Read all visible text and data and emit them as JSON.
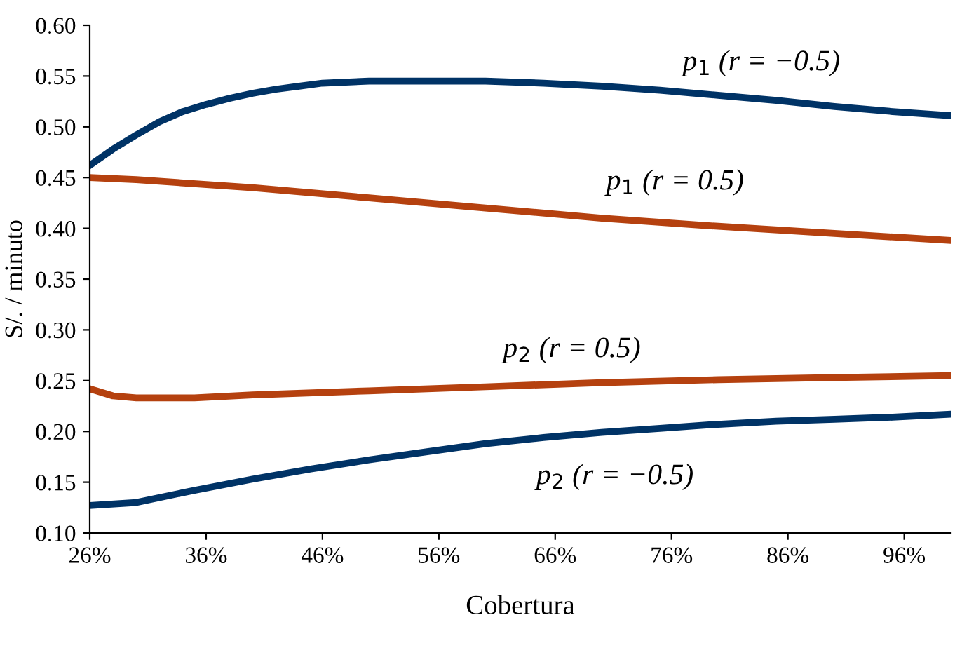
{
  "chart_data": {
    "type": "line",
    "xlabel": "Cobertura",
    "ylabel": "S/. / minuto",
    "xlim": [
      26,
      100
    ],
    "xticks": [
      {
        "value": 26,
        "label": "26%"
      },
      {
        "value": 36,
        "label": "36%"
      },
      {
        "value": 46,
        "label": "46%"
      },
      {
        "value": 56,
        "label": "56%"
      },
      {
        "value": 66,
        "label": "66%"
      },
      {
        "value": 76,
        "label": "76%"
      },
      {
        "value": 86,
        "label": "86%"
      },
      {
        "value": 96,
        "label": "96%"
      }
    ],
    "ylim": [
      0.1,
      0.6
    ],
    "yticks": [
      {
        "value": 0.1,
        "label": "0.10"
      },
      {
        "value": 0.15,
        "label": "0.15"
      },
      {
        "value": 0.2,
        "label": "0.20"
      },
      {
        "value": 0.25,
        "label": "0.25"
      },
      {
        "value": 0.3,
        "label": "0.30"
      },
      {
        "value": 0.35,
        "label": "0.35"
      },
      {
        "value": 0.4,
        "label": "0.40"
      },
      {
        "value": 0.45,
        "label": "0.45"
      },
      {
        "value": 0.5,
        "label": "0.50"
      },
      {
        "value": 0.55,
        "label": "0.55"
      },
      {
        "value": 0.6,
        "label": "0.60"
      }
    ],
    "grid": false,
    "legend": false,
    "marker": "none",
    "line_style": "solid",
    "series": [
      {
        "name": "p$_{1}$ (r = −0.5)",
        "color": "#003366",
        "x": [
          26,
          28,
          30,
          32,
          34,
          36,
          38,
          40,
          42,
          44,
          46,
          48,
          50,
          55,
          60,
          65,
          70,
          75,
          80,
          85,
          90,
          95,
          100
        ],
        "values": [
          0.462,
          0.478,
          0.492,
          0.505,
          0.515,
          0.522,
          0.528,
          0.533,
          0.537,
          0.54,
          0.543,
          0.544,
          0.545,
          0.545,
          0.545,
          0.543,
          0.54,
          0.536,
          0.531,
          0.526,
          0.52,
          0.515,
          0.511
        ]
      },
      {
        "name": "p$_{1}$ (r = 0.5)",
        "color": "#b5410f",
        "x": [
          26,
          30,
          40,
          50,
          60,
          70,
          80,
          90,
          100
        ],
        "values": [
          0.45,
          0.448,
          0.44,
          0.43,
          0.42,
          0.41,
          0.402,
          0.395,
          0.388
        ]
      },
      {
        "name": "p$_{2}$ (r = 0.5)",
        "color": "#b5410f",
        "x": [
          26,
          28,
          30,
          35,
          40,
          50,
          60,
          70,
          80,
          90,
          100
        ],
        "values": [
          0.242,
          0.235,
          0.233,
          0.233,
          0.236,
          0.24,
          0.244,
          0.248,
          0.251,
          0.253,
          0.255
        ]
      },
      {
        "name": "p$_{2}$ (r = −0.5)",
        "color": "#003366",
        "x": [
          26,
          30,
          35,
          40,
          45,
          50,
          55,
          60,
          65,
          70,
          75,
          80,
          85,
          90,
          95,
          100
        ],
        "values": [
          0.127,
          0.13,
          0.142,
          0.153,
          0.163,
          0.172,
          0.18,
          0.188,
          0.194,
          0.199,
          0.203,
          0.207,
          0.21,
          0.212,
          0.214,
          0.217
        ]
      }
    ]
  }
}
